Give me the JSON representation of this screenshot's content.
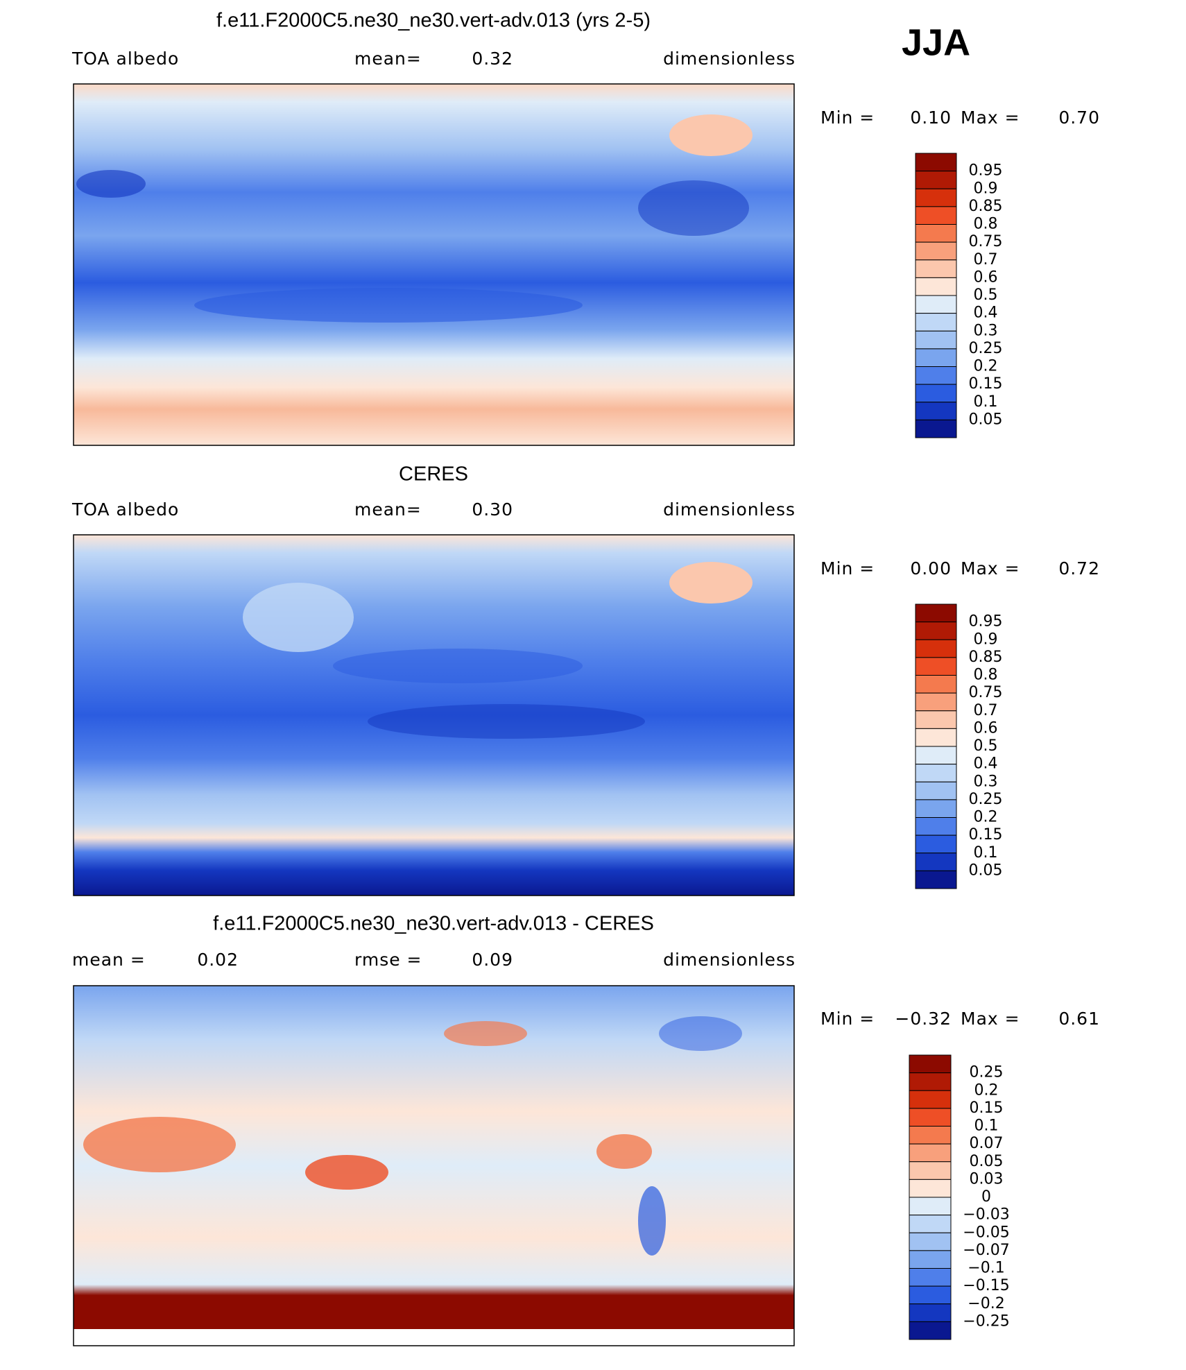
{
  "season": "JJA",
  "panels": [
    {
      "title": "f.e11.F2000C5.ne30_ne30.vert-adv.013 (yrs 2-5)",
      "left_label": "TOA albedo",
      "center_label": "mean=",
      "center_value": "0.32",
      "right": "dimensionless",
      "min_label": "Min =",
      "min": "0.10",
      "max_label": "Max =",
      "max": "0.70",
      "colorbar": {
        "labels": [
          "0.95",
          "0.9",
          "0.85",
          "0.8",
          "0.75",
          "0.7",
          "0.6",
          "0.5",
          "0.4",
          "0.3",
          "0.25",
          "0.2",
          "0.15",
          "0.1",
          "0.05"
        ],
        "colors": [
          "#8c0a00",
          "#b01a05",
          "#d6300c",
          "#ee4f26",
          "#f47a4e",
          "#f8a07c",
          "#fbc7ad",
          "#fde6d8",
          "#dfecf8",
          "#c0d8f6",
          "#a1c2f2",
          "#7aa5ee",
          "#4f7fea",
          "#2b5ce0",
          "#1437c0",
          "#0a1890"
        ]
      }
    },
    {
      "title": "CERES",
      "left_label": "TOA albedo",
      "center_label": "mean=",
      "center_value": "0.30",
      "right": "dimensionless",
      "min_label": "Min =",
      "min": "0.00",
      "max_label": "Max =",
      "max": "0.72",
      "colorbar": {
        "labels": [
          "0.95",
          "0.9",
          "0.85",
          "0.8",
          "0.75",
          "0.7",
          "0.6",
          "0.5",
          "0.4",
          "0.3",
          "0.25",
          "0.2",
          "0.15",
          "0.1",
          "0.05"
        ],
        "colors": [
          "#8c0a00",
          "#b01a05",
          "#d6300c",
          "#ee4f26",
          "#f47a4e",
          "#f8a07c",
          "#fbc7ad",
          "#fde6d8",
          "#dfecf8",
          "#c0d8f6",
          "#a1c2f2",
          "#7aa5ee",
          "#4f7fea",
          "#2b5ce0",
          "#1437c0",
          "#0a1890"
        ]
      }
    },
    {
      "title": "f.e11.F2000C5.ne30_ne30.vert-adv.013 - CERES",
      "left_label": "mean =",
      "left_value": "0.02",
      "center_label": "rmse =",
      "center_value": "0.09",
      "right": "dimensionless",
      "min_label": "Min =",
      "min": "−0.32",
      "max_label": "Max =",
      "max": "0.61",
      "colorbar": {
        "labels": [
          "0.25",
          "0.2",
          "0.15",
          "0.1",
          "0.07",
          "0.05",
          "0.03",
          "0",
          "−0.03",
          "−0.05",
          "−0.07",
          "−0.1",
          "−0.15",
          "−0.2",
          "−0.25"
        ],
        "colors": [
          "#8c0a00",
          "#b01a05",
          "#d6300c",
          "#ee4f26",
          "#f47a4e",
          "#f8a07c",
          "#fbc7ad",
          "#fde6d8",
          "#dfecf8",
          "#c0d8f6",
          "#a1c2f2",
          "#7aa5ee",
          "#4f7fea",
          "#2b5ce0",
          "#1437c0",
          "#0a1890"
        ]
      }
    }
  ]
}
